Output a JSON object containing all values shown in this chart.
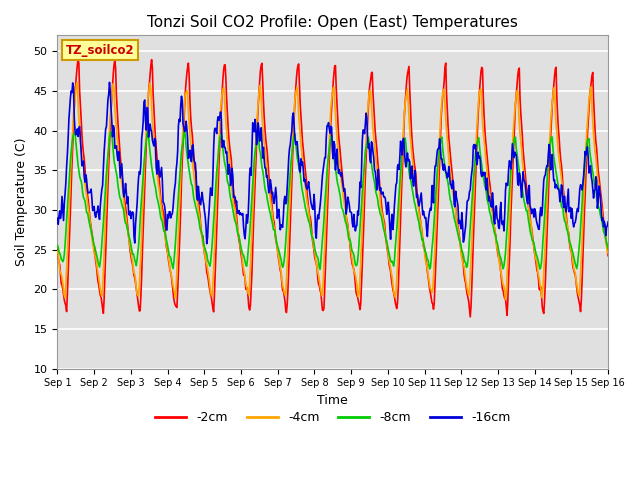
{
  "title": "Tonzi Soil CO2 Profile: Open (East) Temperatures",
  "xlabel": "Time",
  "ylabel": "Soil Temperature (C)",
  "ylim": [
    10,
    52
  ],
  "xlim": [
    0,
    15
  ],
  "bg_color": "#e0e0e0",
  "grid_color": "white",
  "series": {
    "-2cm": {
      "color": "#ff0000",
      "lw": 1.2
    },
    "-4cm": {
      "color": "#ffa500",
      "lw": 1.2
    },
    "-8cm": {
      "color": "#00cc00",
      "lw": 1.2
    },
    "-16cm": {
      "color": "#0000dd",
      "lw": 1.2
    }
  },
  "legend_label": "TZ_soilco2",
  "legend_bg": "#ffff99",
  "legend_border": "#cc9900",
  "xtick_labels": [
    "Sep 1",
    "Sep 2",
    "Sep 3",
    "Sep 4",
    "Sep 5",
    "Sep 6",
    "Sep 7",
    "Sep 8",
    "Sep 9",
    "Sep 10",
    "Sep 11",
    "Sep 12",
    "Sep 13",
    "Sep 14",
    "Sep 15",
    "Sep 16"
  ],
  "ytick_vals": [
    10,
    15,
    20,
    25,
    30,
    35,
    40,
    45,
    50
  ],
  "n_points": 720,
  "days": 15
}
